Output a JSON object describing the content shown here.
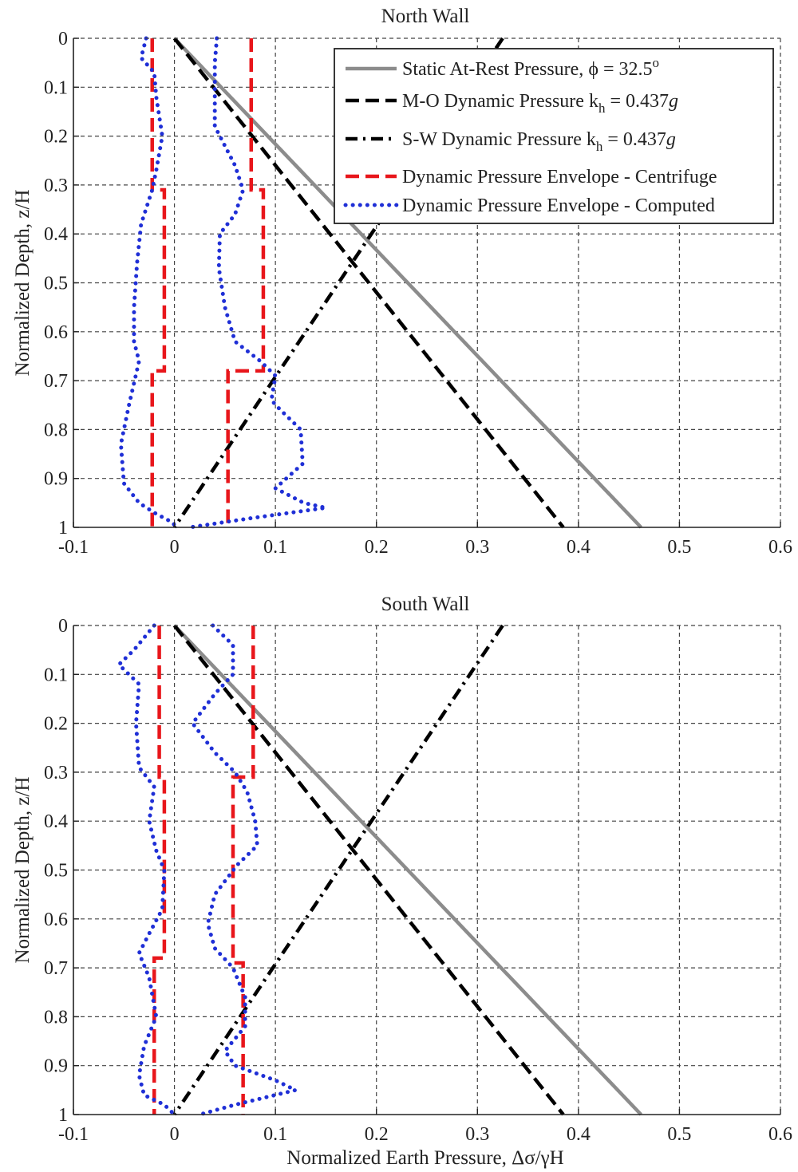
{
  "chart_data": [
    {
      "type": "line",
      "title": "North Wall",
      "xlabel": "",
      "ylabel": "Normalized Depth, z/H",
      "xlim": [
        -0.1,
        0.6
      ],
      "ylim": [
        0,
        1
      ],
      "y_inverted": true,
      "grid": true,
      "legend_position": "top-right",
      "x_ticks": [
        -0.1,
        0,
        0.1,
        0.2,
        0.3,
        0.4,
        0.5,
        0.6
      ],
      "x_tick_labels": [
        "-0.1",
        "0",
        "0.1",
        "0.2",
        "0.3",
        "0.4",
        "0.5",
        "0.6"
      ],
      "y_ticks": [
        0,
        0.1,
        0.2,
        0.3,
        0.4,
        0.5,
        0.6,
        0.7,
        0.8,
        0.9,
        1
      ],
      "y_tick_labels": [
        "0",
        "0.1",
        "0.2",
        "0.3",
        "0.4",
        "0.5",
        "0.6",
        "0.7",
        "0.8",
        "0.9",
        "1"
      ],
      "legend": {
        "static": {
          "pre": "Static At-Rest Pressure, ",
          "sym": "ϕ",
          "eq": " = 32.5",
          "sup": "o"
        },
        "mo": {
          "pre": "M-O Dynamic Pressure k",
          "sub": "h",
          "eq": " = 0.437",
          "unit": "g"
        },
        "sw": {
          "pre": "S-W Dynamic Pressure k",
          "sub": "h",
          "eq": " = 0.437",
          "unit": "g"
        },
        "centrifuge": "Dynamic Pressure Envelope - Centrifuge",
        "computed": "Dynamic Pressure Envelope - Computed"
      },
      "series": [
        {
          "key": "static",
          "color": "#8c8c8c",
          "style": "solid",
          "points": [
            [
              0,
              0
            ],
            [
              0.462,
              1
            ]
          ]
        },
        {
          "key": "mo",
          "color": "#000000",
          "style": "dashed",
          "points": [
            [
              0,
              0
            ],
            [
              0.385,
              1
            ]
          ]
        },
        {
          "key": "sw",
          "color": "#000000",
          "style": "dashdot",
          "points": [
            [
              0.325,
              0
            ],
            [
              0,
              1
            ]
          ]
        },
        {
          "key": "centrifuge-left",
          "legend_key": "centrifuge",
          "color": "#e8161b",
          "style": "dashed",
          "points": [
            [
              -0.022,
              0
            ],
            [
              -0.022,
              0.31
            ],
            [
              -0.01,
              0.31
            ],
            [
              -0.01,
              0.68
            ],
            [
              -0.022,
              0.68
            ],
            [
              -0.022,
              1
            ]
          ]
        },
        {
          "key": "centrifuge-right",
          "legend_key": "centrifuge",
          "color": "#e8161b",
          "style": "dashed",
          "points": [
            [
              0.076,
              0
            ],
            [
              0.076,
              0.31
            ],
            [
              0.088,
              0.31
            ],
            [
              0.088,
              0.68
            ],
            [
              0.053,
              0.68
            ],
            [
              0.053,
              1
            ]
          ]
        },
        {
          "key": "computed-left",
          "legend_key": "computed",
          "color": "#1f2fd6",
          "style": "dotted",
          "points": [
            [
              -0.028,
              0
            ],
            [
              -0.033,
              0.04
            ],
            [
              -0.02,
              0.07
            ],
            [
              -0.018,
              0.12
            ],
            [
              -0.012,
              0.2
            ],
            [
              -0.018,
              0.27
            ],
            [
              -0.022,
              0.31
            ],
            [
              -0.033,
              0.38
            ],
            [
              -0.037,
              0.46
            ],
            [
              -0.04,
              0.55
            ],
            [
              -0.04,
              0.62
            ],
            [
              -0.035,
              0.66
            ],
            [
              -0.045,
              0.75
            ],
            [
              -0.053,
              0.83
            ],
            [
              -0.05,
              0.91
            ],
            [
              -0.035,
              0.95
            ],
            [
              -0.02,
              0.97
            ],
            [
              -0.002,
              0.99
            ],
            [
              0.002,
              1
            ]
          ]
        },
        {
          "key": "computed-right",
          "legend_key": "computed",
          "color": "#1f2fd6",
          "style": "dotted",
          "points": [
            [
              0.042,
              0
            ],
            [
              0.04,
              0.05
            ],
            [
              0.04,
              0.12
            ],
            [
              0.04,
              0.18
            ],
            [
              0.05,
              0.22
            ],
            [
              0.06,
              0.26
            ],
            [
              0.068,
              0.31
            ],
            [
              0.06,
              0.36
            ],
            [
              0.045,
              0.4
            ],
            [
              0.044,
              0.47
            ],
            [
              0.05,
              0.55
            ],
            [
              0.06,
              0.62
            ],
            [
              0.085,
              0.66
            ],
            [
              0.1,
              0.69
            ],
            [
              0.096,
              0.74
            ],
            [
              0.105,
              0.76
            ],
            [
              0.125,
              0.8
            ],
            [
              0.127,
              0.87
            ],
            [
              0.1,
              0.92
            ],
            [
              0.128,
              0.95
            ],
            [
              0.15,
              0.96
            ],
            [
              0.08,
              0.98
            ],
            [
              0.015,
              1
            ]
          ]
        }
      ]
    },
    {
      "type": "line",
      "title": "South Wall",
      "xlabel": "Normalized Earth Pressure, Δσ/γH",
      "ylabel": "Normalized Depth, z/H",
      "xlim": [
        -0.1,
        0.6
      ],
      "ylim": [
        0,
        1
      ],
      "y_inverted": true,
      "grid": true,
      "x_ticks": [
        -0.1,
        0,
        0.1,
        0.2,
        0.3,
        0.4,
        0.5,
        0.6
      ],
      "x_tick_labels": [
        "-0.1",
        "0",
        "0.1",
        "0.2",
        "0.3",
        "0.4",
        "0.5",
        "0.6"
      ],
      "y_ticks": [
        0,
        0.1,
        0.2,
        0.3,
        0.4,
        0.5,
        0.6,
        0.7,
        0.8,
        0.9,
        1
      ],
      "y_tick_labels": [
        "0",
        "0.1",
        "0.2",
        "0.3",
        "0.4",
        "0.5",
        "0.6",
        "0.7",
        "0.8",
        "0.9",
        "1"
      ],
      "series": [
        {
          "key": "static",
          "color": "#8c8c8c",
          "style": "solid",
          "points": [
            [
              0,
              0
            ],
            [
              0.462,
              1
            ]
          ]
        },
        {
          "key": "mo",
          "color": "#000000",
          "style": "dashed",
          "points": [
            [
              0,
              0
            ],
            [
              0.385,
              1
            ]
          ]
        },
        {
          "key": "sw",
          "color": "#000000",
          "style": "dashdot",
          "points": [
            [
              0.325,
              0
            ],
            [
              0,
              1
            ]
          ]
        },
        {
          "key": "centrifuge-left",
          "color": "#e8161b",
          "style": "dashed",
          "points": [
            [
              -0.015,
              0
            ],
            [
              -0.015,
              0.31
            ],
            [
              -0.01,
              0.31
            ],
            [
              -0.01,
              0.68
            ],
            [
              -0.02,
              0.68
            ],
            [
              -0.02,
              1
            ]
          ]
        },
        {
          "key": "centrifuge-right",
          "color": "#e8161b",
          "style": "dashed",
          "points": [
            [
              0.078,
              0
            ],
            [
              0.078,
              0.31
            ],
            [
              0.058,
              0.31
            ],
            [
              0.058,
              0.69
            ],
            [
              0.068,
              0.69
            ],
            [
              0.068,
              1
            ]
          ]
        },
        {
          "key": "computed-left",
          "color": "#1f2fd6",
          "style": "dotted",
          "points": [
            [
              -0.02,
              0
            ],
            [
              -0.04,
              0.05
            ],
            [
              -0.055,
              0.08
            ],
            [
              -0.035,
              0.12
            ],
            [
              -0.038,
              0.2
            ],
            [
              -0.035,
              0.29
            ],
            [
              -0.02,
              0.33
            ],
            [
              -0.025,
              0.4
            ],
            [
              -0.018,
              0.46
            ],
            [
              -0.01,
              0.5
            ],
            [
              -0.012,
              0.58
            ],
            [
              -0.025,
              0.63
            ],
            [
              -0.035,
              0.67
            ],
            [
              -0.025,
              0.72
            ],
            [
              -0.018,
              0.8
            ],
            [
              -0.03,
              0.86
            ],
            [
              -0.035,
              0.92
            ],
            [
              -0.03,
              0.96
            ],
            [
              -0.01,
              0.98
            ],
            [
              0,
              1
            ]
          ]
        },
        {
          "key": "computed-right",
          "color": "#1f2fd6",
          "style": "dotted",
          "points": [
            [
              0.038,
              0
            ],
            [
              0.058,
              0.04
            ],
            [
              0.058,
              0.1
            ],
            [
              0.04,
              0.14
            ],
            [
              0.018,
              0.2
            ],
            [
              0.04,
              0.26
            ],
            [
              0.06,
              0.3
            ],
            [
              0.072,
              0.34
            ],
            [
              0.08,
              0.4
            ],
            [
              0.082,
              0.45
            ],
            [
              0.062,
              0.49
            ],
            [
              0.04,
              0.55
            ],
            [
              0.033,
              0.61
            ],
            [
              0.04,
              0.66
            ],
            [
              0.058,
              0.7
            ],
            [
              0.07,
              0.76
            ],
            [
              0.07,
              0.82
            ],
            [
              0.05,
              0.87
            ],
            [
              0.06,
              0.9
            ],
            [
              0.1,
              0.93
            ],
            [
              0.12,
              0.95
            ],
            [
              0.06,
              0.98
            ],
            [
              0.025,
              1
            ]
          ]
        }
      ]
    }
  ]
}
